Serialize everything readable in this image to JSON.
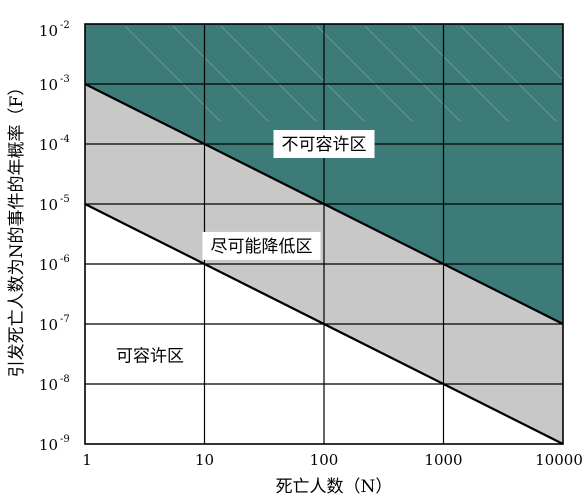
{
  "chart_data": {
    "type": "area",
    "title": "",
    "xlabel": "死亡人数（N）",
    "ylabel": "引发死亡人数为N的事件的年概率（F）",
    "x_scale": "log",
    "y_scale": "log",
    "xlim": [
      1,
      10000
    ],
    "ylim": [
      1e-09,
      0.01
    ],
    "grid": true,
    "x_ticks": [
      "1",
      "10",
      "100",
      "1000",
      "10000"
    ],
    "y_ticks": [
      {
        "base": "10",
        "exp": "-9"
      },
      {
        "base": "10",
        "exp": "-8"
      },
      {
        "base": "10",
        "exp": "-7"
      },
      {
        "base": "10",
        "exp": "-6"
      },
      {
        "base": "10",
        "exp": "-5"
      },
      {
        "base": "10",
        "exp": "-4"
      },
      {
        "base": "10",
        "exp": "-3"
      },
      {
        "base": "10",
        "exp": "-2"
      }
    ],
    "series": [
      {
        "name": "",
        "x": [
          1,
          10000
        ],
        "y": [
          0.001,
          1e-07
        ]
      },
      {
        "name": "",
        "x": [
          1,
          10000
        ],
        "y": [
          1e-05,
          1e-09
        ]
      }
    ],
    "regions": [
      {
        "label": "不可容许区",
        "color": "#3c7b77",
        "label_at": [
          100,
          0.0001
        ]
      },
      {
        "label": "尽可能降低区",
        "color": "#c8c8c8",
        "label_at": [
          30,
          2e-06
        ]
      },
      {
        "label": "可容许区",
        "color": "#ffffff",
        "label_at": [
          3.5,
          3e-08
        ]
      }
    ]
  }
}
